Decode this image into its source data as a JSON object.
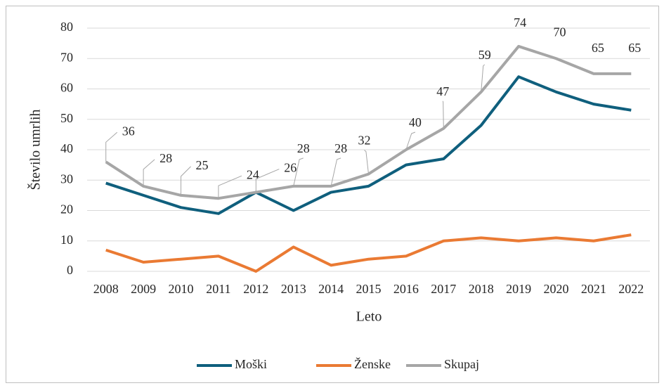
{
  "chart_data": {
    "type": "line",
    "x_label": "Leto",
    "y_label": "Število umrlih",
    "categories": [
      "2008",
      "2009",
      "2010",
      "2011",
      "2012",
      "2013",
      "2014",
      "2015",
      "2016",
      "2017",
      "2018",
      "2019",
      "2020",
      "2021",
      "2022"
    ],
    "series": [
      {
        "name": "Moški",
        "color": "#0f5f7d",
        "values": [
          29,
          25,
          21,
          19,
          26,
          20,
          26,
          28,
          35,
          37,
          48,
          64,
          59,
          55,
          53
        ]
      },
      {
        "name": "Ženske",
        "color": "#ea7a33",
        "values": [
          7,
          3,
          4,
          5,
          0,
          8,
          2,
          4,
          5,
          10,
          11,
          10,
          11,
          10,
          12
        ]
      },
      {
        "name": "Skupaj",
        "color": "#a6a6a6",
        "values": [
          36,
          28,
          25,
          24,
          26,
          28,
          28,
          32,
          40,
          47,
          59,
          74,
          70,
          65,
          65
        ],
        "data_labels": true
      }
    ],
    "ylim": [
      0,
      80
    ],
    "yticks": [
      0,
      10,
      20,
      30,
      40,
      50,
      60,
      70,
      80
    ],
    "grid": true,
    "legend": "bottom"
  }
}
